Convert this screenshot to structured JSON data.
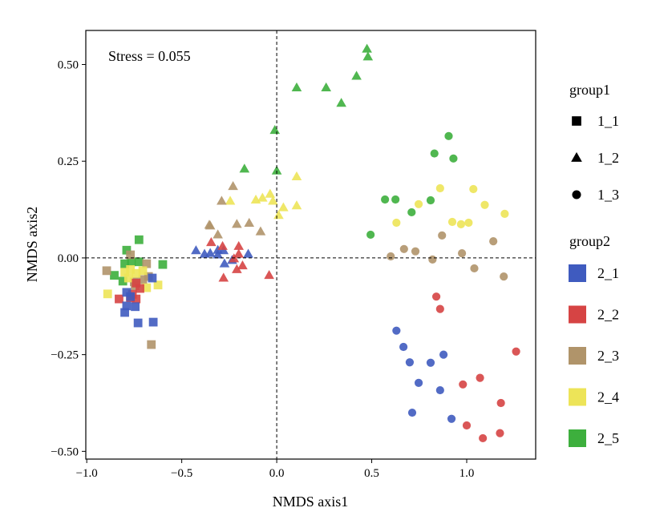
{
  "chart_data": {
    "type": "scatter",
    "title": "",
    "annotation": "Stress = 0.055",
    "xlabel": "NMDS axis1",
    "ylabel": "NMDS axis2",
    "xlim": [
      -1.005,
      1.363
    ],
    "ylim": [
      -0.52,
      0.588
    ],
    "xticks": [
      -1.0,
      -0.5,
      0.0,
      0.5,
      1.0
    ],
    "xtick_labels": [
      "−1.0",
      "−0.5",
      "0.0",
      "0.5",
      "1.0"
    ],
    "yticks": [
      -0.5,
      -0.25,
      0.0,
      0.25,
      0.5
    ],
    "ytick_labels": [
      "−0.50",
      "−0.25",
      "0.00",
      "0.25",
      "0.50"
    ],
    "grid": false,
    "reference_lines": {
      "x": 0,
      "y": 0,
      "style": "dashed"
    },
    "legend": {
      "placement": "right",
      "group1_title": "group1",
      "group1": [
        {
          "label": "1_1",
          "shape": "square"
        },
        {
          "label": "1_2",
          "shape": "triangle"
        },
        {
          "label": "1_3",
          "shape": "circle"
        }
      ],
      "group2_title": "group2",
      "group2": [
        {
          "label": "2_1",
          "color": "#3F5BBF"
        },
        {
          "label": "2_2",
          "color": "#D64444"
        },
        {
          "label": "2_3",
          "color": "#B0946A"
        },
        {
          "label": "2_4",
          "color": "#EDE458"
        },
        {
          "label": "2_5",
          "color": "#3DAF3D"
        }
      ]
    },
    "series": [
      {
        "group1": "1_1",
        "group2": "2_5",
        "points": [
          [
            -0.725,
            0.047
          ],
          [
            -0.79,
            0.02
          ],
          [
            -0.8,
            -0.015
          ],
          [
            -0.725,
            -0.01
          ],
          [
            -0.6,
            -0.017
          ],
          [
            -0.855,
            -0.045
          ],
          [
            -0.81,
            -0.06
          ],
          [
            -0.765,
            -0.01
          ]
        ]
      },
      {
        "group1": "1_1",
        "group2": "2_3",
        "points": [
          [
            -0.77,
            0.008
          ],
          [
            -0.685,
            -0.015
          ],
          [
            -0.895,
            -0.033
          ],
          [
            -0.675,
            -0.048
          ],
          [
            -0.705,
            -0.056
          ],
          [
            -0.75,
            -0.062
          ],
          [
            -0.745,
            -0.072
          ],
          [
            -0.66,
            -0.224
          ]
        ]
      },
      {
        "group1": "1_1",
        "group2": "2_4",
        "points": [
          [
            -0.8,
            -0.037
          ],
          [
            -0.77,
            -0.03
          ],
          [
            -0.74,
            -0.04
          ],
          [
            -0.705,
            -0.033
          ],
          [
            -0.78,
            -0.052
          ],
          [
            -0.625,
            -0.07
          ],
          [
            -0.685,
            -0.077
          ],
          [
            -0.89,
            -0.093
          ]
        ]
      },
      {
        "group1": "1_1",
        "group2": "2_2",
        "points": [
          [
            -0.74,
            -0.065
          ],
          [
            -0.72,
            -0.079
          ],
          [
            -0.83,
            -0.106
          ],
          [
            -0.77,
            -0.103
          ],
          [
            -0.74,
            -0.106
          ],
          [
            -0.76,
            -0.094
          ]
        ]
      },
      {
        "group1": "1_1",
        "group2": "2_1",
        "points": [
          [
            -0.655,
            -0.052
          ],
          [
            -0.79,
            -0.089
          ],
          [
            -0.77,
            -0.1
          ],
          [
            -0.79,
            -0.124
          ],
          [
            -0.745,
            -0.126
          ],
          [
            -0.8,
            -0.141
          ],
          [
            -0.73,
            -0.168
          ],
          [
            -0.65,
            -0.166
          ]
        ]
      },
      {
        "group1": "1_2",
        "group2": "2_5",
        "points": [
          [
            -0.17,
            0.23
          ],
          [
            0.0,
            0.225
          ],
          [
            -0.01,
            0.33
          ],
          [
            0.105,
            0.44
          ],
          [
            0.26,
            0.44
          ],
          [
            0.34,
            0.4
          ],
          [
            0.42,
            0.47
          ],
          [
            0.475,
            0.54
          ],
          [
            0.48,
            0.52
          ]
        ]
      },
      {
        "group1": "1_2",
        "group2": "2_4",
        "points": [
          [
            0.105,
            0.21
          ],
          [
            -0.245,
            0.147
          ],
          [
            -0.11,
            0.15
          ],
          [
            -0.075,
            0.155
          ],
          [
            -0.035,
            0.165
          ],
          [
            -0.02,
            0.147
          ],
          [
            0.035,
            0.13
          ],
          [
            0.105,
            0.135
          ],
          [
            0.01,
            0.11
          ]
        ]
      },
      {
        "group1": "1_2",
        "group2": "2_3",
        "points": [
          [
            -0.23,
            0.185
          ],
          [
            -0.29,
            0.147
          ],
          [
            -0.355,
            0.085
          ],
          [
            -0.35,
            0.083
          ],
          [
            -0.21,
            0.087
          ],
          [
            -0.145,
            0.09
          ],
          [
            -0.085,
            0.068
          ],
          [
            -0.31,
            0.06
          ]
        ]
      },
      {
        "group1": "1_2",
        "group2": "2_1",
        "points": [
          [
            -0.425,
            0.019
          ],
          [
            -0.38,
            0.01
          ],
          [
            -0.35,
            0.012
          ],
          [
            -0.31,
            0.02
          ],
          [
            -0.28,
            0.019
          ],
          [
            -0.31,
            0.008
          ],
          [
            -0.275,
            -0.015
          ],
          [
            -0.235,
            -0.006
          ],
          [
            -0.15,
            0.01
          ]
        ]
      },
      {
        "group1": "1_2",
        "group2": "2_2",
        "points": [
          [
            -0.345,
            0.04
          ],
          [
            -0.285,
            0.03
          ],
          [
            -0.2,
            0.03
          ],
          [
            -0.2,
            0.01
          ],
          [
            -0.225,
            -0.002
          ],
          [
            -0.18,
            -0.02
          ],
          [
            -0.21,
            -0.03
          ],
          [
            -0.28,
            -0.052
          ],
          [
            -0.04,
            -0.045
          ]
        ]
      },
      {
        "group1": "1_3",
        "group2": "2_5",
        "points": [
          [
            0.905,
            0.315
          ],
          [
            0.83,
            0.27
          ],
          [
            0.93,
            0.257
          ],
          [
            0.57,
            0.151
          ],
          [
            0.625,
            0.151
          ],
          [
            0.71,
            0.118
          ],
          [
            0.81,
            0.149
          ],
          [
            0.494,
            0.06
          ]
        ]
      },
      {
        "group1": "1_3",
        "group2": "2_4",
        "points": [
          [
            0.86,
            0.18
          ],
          [
            1.035,
            0.178
          ],
          [
            0.747,
            0.139
          ],
          [
            1.095,
            0.137
          ],
          [
            0.924,
            0.093
          ],
          [
            0.97,
            0.087
          ],
          [
            1.01,
            0.091
          ],
          [
            1.2,
            0.114
          ],
          [
            0.63,
            0.091
          ]
        ]
      },
      {
        "group1": "1_3",
        "group2": "2_3",
        "points": [
          [
            0.6,
            0.004
          ],
          [
            0.67,
            0.023
          ],
          [
            0.73,
            0.017
          ],
          [
            0.87,
            0.058
          ],
          [
            0.82,
            -0.004
          ],
          [
            0.975,
            0.012
          ],
          [
            1.14,
            0.043
          ],
          [
            1.04,
            -0.027
          ],
          [
            1.195,
            -0.048
          ]
        ]
      },
      {
        "group1": "1_3",
        "group2": "2_2",
        "points": [
          [
            0.84,
            -0.1
          ],
          [
            0.86,
            -0.132
          ],
          [
            1.26,
            -0.242
          ],
          [
            1.07,
            -0.31
          ],
          [
            0.98,
            -0.327
          ],
          [
            1.18,
            -0.375
          ],
          [
            1.0,
            -0.433
          ],
          [
            1.085,
            -0.466
          ],
          [
            1.175,
            -0.453
          ]
        ]
      },
      {
        "group1": "1_3",
        "group2": "2_1",
        "points": [
          [
            0.63,
            -0.188
          ],
          [
            0.667,
            -0.23
          ],
          [
            0.7,
            -0.27
          ],
          [
            0.81,
            -0.271
          ],
          [
            0.878,
            -0.25
          ],
          [
            0.747,
            -0.323
          ],
          [
            0.86,
            -0.342
          ],
          [
            0.713,
            -0.4
          ],
          [
            0.92,
            -0.416
          ]
        ]
      }
    ]
  }
}
